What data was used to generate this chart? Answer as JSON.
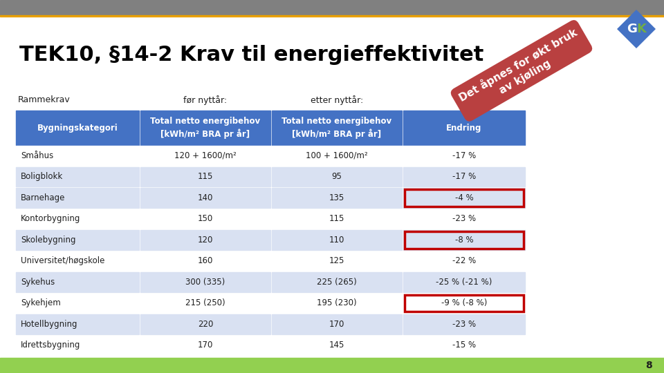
{
  "title": "TEK10, §14-2 Krav til energieffektivitet",
  "rammekrav": "Rammekrav",
  "for_nyttar": "før nyttår:",
  "etter_nyttar": "etter nyttår:",
  "header_bg": "#4472C4",
  "header_text_color": "#FFFFFF",
  "col1_header": "Bygningskategori",
  "col2_header": "Total netto energibehov\n[kWh/m² BRA pr år]",
  "col3_header": "Total netto energibehov\n[kWh/m² BRA pr år]",
  "col4_header": "Endring",
  "rows": [
    {
      "cat": "Småhus",
      "before": "120 + 1600/m²",
      "after": "100 + 1600/m²",
      "change": "-17 %",
      "highlight": false,
      "shade": false
    },
    {
      "cat": "Boligblokk",
      "before": "115",
      "after": "95",
      "change": "-17 %",
      "highlight": false,
      "shade": true
    },
    {
      "cat": "Barnehage",
      "before": "140",
      "after": "135",
      "change": "-4 %",
      "highlight": true,
      "shade": true
    },
    {
      "cat": "Kontorbygning",
      "before": "150",
      "after": "115",
      "change": "-23 %",
      "highlight": false,
      "shade": false
    },
    {
      "cat": "Skolebygning",
      "before": "120",
      "after": "110",
      "change": "-8 %",
      "highlight": true,
      "shade": true
    },
    {
      "cat": "Universitet/høgskole",
      "before": "160",
      "after": "125",
      "change": "-22 %",
      "highlight": false,
      "shade": false
    },
    {
      "cat": "Sykehus",
      "before": "300 (335)",
      "after": "225 (265)",
      "change": "-25 % (-21 %)",
      "highlight": false,
      "shade": true
    },
    {
      "cat": "Sykehjem",
      "before": "215 (250)",
      "after": "195 (230)",
      "change": "-9 % (-8 %)",
      "highlight": true,
      "shade": false
    },
    {
      "cat": "Hotellbygning",
      "before": "220",
      "after": "170",
      "change": "-23 %",
      "highlight": false,
      "shade": true
    },
    {
      "cat": "Idrettsbygning",
      "before": "170",
      "after": "145",
      "change": "-15 %",
      "highlight": false,
      "shade": false
    }
  ],
  "shade_color": "#D9E1F2",
  "normal_row_color": "#FFFFFF",
  "title_color": "#000000",
  "text_color": "#1F1F1F",
  "highlight_border_color": "#C00000",
  "footer_bar_color": "#92D050",
  "page_number": "8",
  "top_bar_color": "#808080",
  "bg_color": "#FFFFFF",
  "diagonal_text_color": "#FFFFFF",
  "diagonal_bg_color": "#B94040",
  "top_orange_line_color": "#E8A000",
  "gk_diamond_color": "#4472C4",
  "gk_k_color": "#70AD47"
}
